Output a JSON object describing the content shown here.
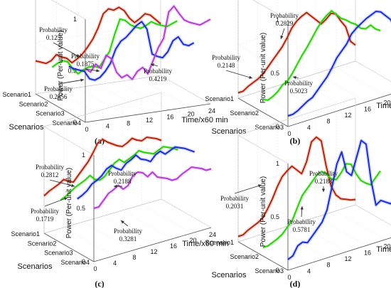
{
  "chart_data": [
    {
      "panel_label": "(a)",
      "type": "line",
      "projection": "3d",
      "ylabel": "Power (Per-unit value)",
      "xlabel": "Time/x60 min",
      "scenario_axis_label": "Scenarios",
      "z_ticks": [
        "0",
        "0.5",
        "1"
      ],
      "x_ticks": [
        "0",
        "4",
        "8",
        "12",
        "16",
        "20",
        "24"
      ],
      "zlim": [
        0,
        1
      ],
      "xlim": [
        0,
        24
      ],
      "series": [
        {
          "scenario": "Scenario4",
          "probability_label": "Probability",
          "probability": "0.125",
          "color": "#b040d0",
          "x": [
            0,
            1,
            2,
            3,
            4,
            5,
            6,
            7,
            8,
            9,
            10,
            11,
            12,
            13,
            14,
            15,
            16,
            17,
            18,
            19,
            20,
            21,
            22,
            23,
            24
          ],
          "values": [
            0.52,
            0.48,
            0.55,
            0.5,
            0.62,
            0.58,
            0.44,
            0.38,
            0.4,
            0.35,
            0.42,
            0.45,
            0.38,
            0.5,
            0.62,
            0.7,
            0.95,
            1.0,
            0.92,
            0.85,
            0.82,
            0.8,
            0.78,
            0.8,
            0.82
          ]
        },
        {
          "scenario": "Scenario3",
          "probability_label": "Probability",
          "probability": "0.1875",
          "color": "#1a2fd0",
          "x": [
            0,
            1,
            2,
            3,
            4,
            5,
            6,
            7,
            8,
            9,
            10,
            11,
            12,
            13,
            14,
            15,
            16,
            17,
            18,
            19,
            20,
            21,
            22,
            23,
            24
          ],
          "values": [
            0.45,
            0.42,
            0.4,
            0.38,
            0.3,
            0.28,
            0.3,
            0.35,
            0.42,
            0.55,
            0.62,
            0.65,
            0.7,
            0.75,
            0.78,
            0.7,
            0.45,
            0.42,
            0.4,
            0.45,
            0.55,
            0.58,
            0.5,
            0.48,
            0.5
          ]
        },
        {
          "scenario": "Scenario2",
          "probability_label": "Probability",
          "probability": "0.2656",
          "color": "#30cc10",
          "x": [
            0,
            1,
            2,
            3,
            4,
            5,
            6,
            7,
            8,
            9,
            10,
            11,
            12,
            13,
            14,
            15,
            16,
            17,
            18,
            19,
            20,
            21,
            22,
            23,
            24
          ],
          "values": [
            0.35,
            0.38,
            0.4,
            0.38,
            0.3,
            0.25,
            0.28,
            0.3,
            0.3,
            0.28,
            0.35,
            0.42,
            0.58,
            0.72,
            0.7,
            0.65,
            0.62,
            0.6,
            0.62,
            0.65,
            0.62,
            0.6,
            0.58,
            0.6,
            0.62
          ]
        },
        {
          "scenario": "Scenario1",
          "probability_label": "Probability",
          "probability": "0.4219",
          "color": "#b02810",
          "x": [
            0,
            1,
            2,
            3,
            4,
            5,
            6,
            7,
            8,
            9,
            10,
            11,
            12,
            13,
            14,
            15,
            16,
            17,
            18,
            19,
            20,
            21,
            22,
            23,
            24
          ],
          "values": [
            0.32,
            0.3,
            0.28,
            0.3,
            0.35,
            0.32,
            0.3,
            0.25,
            0.28,
            0.32,
            0.38,
            0.45,
            0.55,
            0.68,
            0.72,
            0.7,
            0.72,
            0.68,
            0.6,
            0.55,
            0.58,
            0.62,
            0.6,
            0.55,
            0.5
          ]
        }
      ]
    },
    {
      "panel_label": "(b)",
      "type": "line",
      "projection": "3d",
      "ylabel": "Power (Per-unit value)",
      "xlabel": "Time/x60 min",
      "scenario_axis_label": "Scenarios",
      "z_ticks": [
        "0",
        "0.5",
        "1"
      ],
      "x_ticks": [
        "0",
        "4",
        "8",
        "12",
        "16",
        "20",
        "24"
      ],
      "zlim": [
        0,
        1
      ],
      "xlim": [
        0,
        24
      ],
      "series": [
        {
          "scenario": "Scenario3",
          "probability_label": "Probability",
          "probability": "0.2829",
          "color": "#1a2fd0",
          "x": [
            0,
            1,
            2,
            3,
            4,
            5,
            6,
            7,
            8,
            9,
            10,
            11,
            12,
            13,
            14,
            15,
            16,
            17,
            18,
            19,
            20,
            21,
            22,
            23,
            24
          ],
          "values": [
            0.1,
            0.1,
            0.12,
            0.15,
            0.18,
            0.2,
            0.25,
            0.3,
            0.35,
            0.42,
            0.5,
            0.55,
            0.6,
            0.68,
            0.72,
            0.75,
            0.78,
            0.8,
            0.82,
            0.8,
            0.75,
            0.7,
            0.6,
            0.45,
            0.5
          ]
        },
        {
          "scenario": "Scenario2",
          "probability_label": "Probability",
          "probability": "0.2148",
          "color": "#30cc10",
          "x": [
            0,
            1,
            2,
            3,
            4,
            5,
            6,
            7,
            8,
            9,
            10,
            11,
            12,
            13,
            14,
            15,
            16,
            17,
            18,
            19,
            20,
            21,
            22,
            23,
            24
          ],
          "values": [
            0.12,
            0.1,
            0.12,
            0.15,
            0.2,
            0.22,
            0.28,
            0.35,
            0.42,
            0.48,
            0.55,
            0.62,
            0.68,
            0.72,
            0.75,
            0.7,
            0.65,
            0.62,
            0.58,
            0.55,
            0.5,
            0.48,
            0.5,
            0.45,
            0.42
          ]
        },
        {
          "scenario": "Scenario1",
          "probability_label": "Probability",
          "probability": "0.5023",
          "color": "#b02810",
          "x": [
            0,
            1,
            2,
            3,
            4,
            5,
            6,
            7,
            8,
            9,
            10,
            11,
            12,
            13,
            14,
            15,
            16,
            17,
            18,
            19,
            20,
            21,
            22,
            23,
            24
          ],
          "values": [
            0.05,
            0.05,
            0.08,
            0.1,
            0.12,
            0.15,
            0.2,
            0.25,
            0.3,
            0.35,
            0.42,
            0.5,
            0.55,
            0.58,
            0.6,
            0.55,
            0.5,
            0.45,
            0.48,
            0.52,
            0.5,
            0.42,
            0.35,
            0.2,
            0.15
          ]
        }
      ]
    },
    {
      "panel_label": "(c)",
      "type": "line",
      "projection": "3d",
      "ylabel": "Power (Per-unit value)",
      "xlabel": "Time/x60 min",
      "scenario_axis_label": "Scenarios",
      "z_ticks": [
        "0",
        "0.5",
        "1"
      ],
      "x_ticks": [
        "0",
        "4",
        "8",
        "12",
        "16",
        "20",
        "24"
      ],
      "zlim": [
        0,
        1
      ],
      "xlim": [
        0,
        24
      ],
      "series": [
        {
          "scenario": "Scenario4",
          "probability_label": "Probability",
          "probability": "0.2812",
          "color": "#b040d0",
          "x": [
            0,
            1,
            2,
            3,
            4,
            5,
            6,
            7,
            8,
            9,
            10,
            11,
            12,
            13,
            14,
            15,
            16,
            17,
            18,
            19,
            20,
            21,
            22,
            23,
            24
          ],
          "values": [
            0.5,
            0.5,
            0.55,
            0.6,
            0.62,
            0.65,
            0.6,
            0.62,
            0.7,
            0.72,
            0.7,
            0.65,
            0.68,
            0.62,
            0.6,
            0.58,
            0.55,
            0.55,
            0.58,
            0.6,
            0.62,
            0.6,
            0.58,
            0.55,
            0.55
          ]
        },
        {
          "scenario": "Scenario3",
          "probability_label": "Probability",
          "probability": "0.1719",
          "color": "#1a2fd0",
          "x": [
            0,
            1,
            2,
            3,
            4,
            5,
            6,
            7,
            8,
            9,
            10,
            11,
            12,
            13,
            14,
            15,
            16,
            17,
            18,
            19,
            20,
            21,
            22,
            23,
            24
          ],
          "values": [
            0.5,
            0.52,
            0.55,
            0.6,
            0.62,
            0.65,
            0.7,
            0.72,
            0.68,
            0.65,
            0.7,
            0.72,
            0.75,
            0.7,
            0.68,
            0.65,
            0.7,
            0.72,
            0.68,
            0.7,
            0.72,
            0.7,
            0.68,
            0.65,
            0.62
          ]
        },
        {
          "scenario": "Scenario2",
          "probability_label": "Probability",
          "probability": "0.2188",
          "color": "#30cc10",
          "x": [
            0,
            1,
            2,
            3,
            4,
            5,
            6,
            7,
            8,
            9,
            10,
            11,
            12,
            13,
            14,
            15,
            16,
            17,
            18,
            19,
            20,
            21,
            22,
            23,
            24
          ],
          "values": [
            0.4,
            0.42,
            0.45,
            0.48,
            0.5,
            0.52,
            0.55,
            0.5,
            0.48,
            0.5,
            0.55,
            0.6,
            0.62,
            0.58,
            0.6,
            0.62,
            0.65,
            0.62,
            0.6,
            0.58,
            0.6,
            0.62,
            0.6,
            0.58,
            0.55
          ]
        },
        {
          "scenario": "Scenario1",
          "probability_label": "Probability",
          "probability": "0.3281",
          "color": "#b02810",
          "x": [
            0,
            1,
            2,
            3,
            4,
            5,
            6,
            7,
            8,
            9,
            10,
            11,
            12,
            13,
            14,
            15,
            16,
            17,
            18,
            19,
            20,
            21,
            22,
            23,
            24
          ],
          "values": [
            0.35,
            0.38,
            0.4,
            0.42,
            0.45,
            0.42,
            0.4,
            0.45,
            0.5,
            0.55,
            0.62,
            0.7,
            0.72,
            0.68,
            0.65,
            0.62,
            0.6,
            0.62,
            0.65,
            0.62,
            0.6,
            0.62,
            0.6,
            0.58,
            0.55
          ]
        }
      ]
    },
    {
      "panel_label": "(d)",
      "type": "line",
      "projection": "3d",
      "ylabel": "Power (Per-unit value)",
      "xlabel": "Time/x60 min",
      "scenario_axis_label": "Scenarios",
      "z_ticks": [
        "0",
        "0.5",
        "1"
      ],
      "x_ticks": [
        "0",
        "4",
        "8",
        "12",
        "16",
        "20",
        "24"
      ],
      "zlim": [
        0,
        1
      ],
      "xlim": [
        0,
        24
      ],
      "series": [
        {
          "scenario": "Scenario3",
          "probability_label": "Probability",
          "probability": "0.2031",
          "color": "#1a2fd0",
          "x": [
            0,
            1,
            2,
            3,
            4,
            5,
            6,
            7,
            8,
            9,
            10,
            11,
            12,
            13,
            14,
            15,
            16,
            17,
            18,
            19,
            20,
            21,
            22,
            23,
            24
          ],
          "values": [
            0.1,
            0.12,
            0.2,
            0.22,
            0.2,
            0.25,
            0.3,
            0.35,
            0.45,
            0.65,
            0.85,
            0.95,
            0.75,
            0.7,
            0.85,
            1.0,
            0.95,
            0.6,
            0.35,
            0.38,
            0.35,
            0.32,
            0.35,
            0.38,
            0.35
          ]
        },
        {
          "scenario": "Scenario2",
          "probability_label": "Probability",
          "probability": "0.2188",
          "color": "#30cc10",
          "x": [
            0,
            1,
            2,
            3,
            4,
            5,
            6,
            7,
            8,
            9,
            10,
            11,
            12,
            13,
            14,
            15,
            16,
            17,
            18,
            19,
            20,
            21,
            22,
            23,
            24
          ],
          "values": [
            0.08,
            0.08,
            0.1,
            0.12,
            0.15,
            0.2,
            0.25,
            0.35,
            0.45,
            0.5,
            0.55,
            0.6,
            0.62,
            0.58,
            0.52,
            0.5,
            0.55,
            0.62,
            0.6,
            0.5,
            0.42,
            0.38,
            0.35,
            0.4,
            0.45
          ]
        },
        {
          "scenario": "Scenario1",
          "probability_label": "Probability",
          "probability": "0.5781",
          "color": "#b02810",
          "x": [
            0,
            1,
            2,
            3,
            4,
            5,
            6,
            7,
            8,
            9,
            10,
            11,
            12,
            13,
            14,
            15,
            16,
            17,
            18,
            19,
            20,
            21,
            22,
            23,
            24
          ],
          "values": [
            0.05,
            0.05,
            0.08,
            0.1,
            0.12,
            0.15,
            0.22,
            0.3,
            0.4,
            0.48,
            0.52,
            0.55,
            0.5,
            0.45,
            0.55,
            0.72,
            0.75,
            0.7,
            0.45,
            0.25,
            0.15,
            0.1,
            0.08,
            0.06,
            0.05
          ]
        }
      ]
    }
  ]
}
